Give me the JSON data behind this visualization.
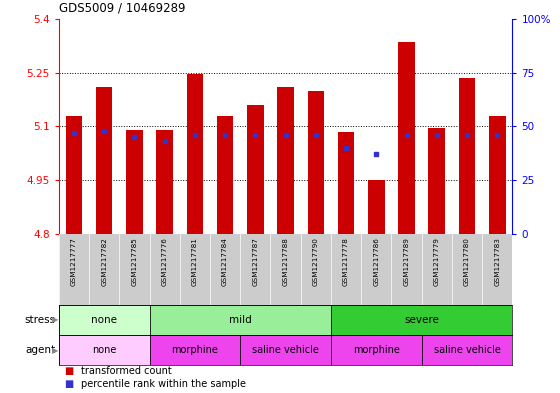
{
  "title": "GDS5009 / 10469289",
  "samples": [
    "GSM1217777",
    "GSM1217782",
    "GSM1217785",
    "GSM1217776",
    "GSM1217781",
    "GSM1217784",
    "GSM1217787",
    "GSM1217788",
    "GSM1217790",
    "GSM1217778",
    "GSM1217786",
    "GSM1217789",
    "GSM1217779",
    "GSM1217780",
    "GSM1217783"
  ],
  "red_values": [
    5.13,
    5.21,
    5.09,
    5.09,
    5.245,
    5.13,
    5.16,
    5.21,
    5.2,
    5.085,
    4.95,
    5.335,
    5.095,
    5.235,
    5.13
  ],
  "blue_values_pct": [
    47,
    48,
    45,
    43,
    46,
    46,
    46,
    46,
    46,
    40,
    37,
    46,
    46,
    46,
    46
  ],
  "ymin": 4.8,
  "ymax": 5.4,
  "yticks": [
    4.8,
    4.95,
    5.1,
    5.25,
    5.4
  ],
  "ytick_labels": [
    "4.8",
    "4.95",
    "5.1",
    "5.25",
    "5.4"
  ],
  "right_yticks": [
    0,
    25,
    50,
    75,
    100
  ],
  "right_ytick_labels": [
    "0",
    "25",
    "50",
    "75",
    "100%"
  ],
  "bar_color": "#cc0000",
  "blue_color": "#3333cc",
  "bg_color": "#ffffff",
  "label_bg": "#cccccc",
  "stress_none_color": "#ccffcc",
  "stress_mild_color": "#99ee99",
  "stress_severe_color": "#33cc33",
  "agent_none_color": "#ffccff",
  "agent_morphine_color": "#ff44ff",
  "agent_saline_color": "#ff44ff",
  "stress_label": "stress",
  "agent_label": "agent",
  "legend_red": "transformed count",
  "legend_blue": "percentile rank within the sample",
  "stress_regions": [
    {
      "label": "none",
      "start": 0,
      "end": 3,
      "color": "#ccffcc"
    },
    {
      "label": "mild",
      "start": 3,
      "end": 9,
      "color": "#99ee99"
    },
    {
      "label": "severe",
      "start": 9,
      "end": 15,
      "color": "#33cc33"
    }
  ],
  "agent_regions": [
    {
      "label": "none",
      "start": 0,
      "end": 3,
      "color": "#ffccff"
    },
    {
      "label": "morphine",
      "start": 3,
      "end": 6,
      "color": "#ee44ee"
    },
    {
      "label": "saline vehicle",
      "start": 6,
      "end": 9,
      "color": "#ee44ee"
    },
    {
      "label": "morphine",
      "start": 9,
      "end": 12,
      "color": "#ee44ee"
    },
    {
      "label": "saline vehicle",
      "start": 12,
      "end": 15,
      "color": "#ee44ee"
    }
  ]
}
